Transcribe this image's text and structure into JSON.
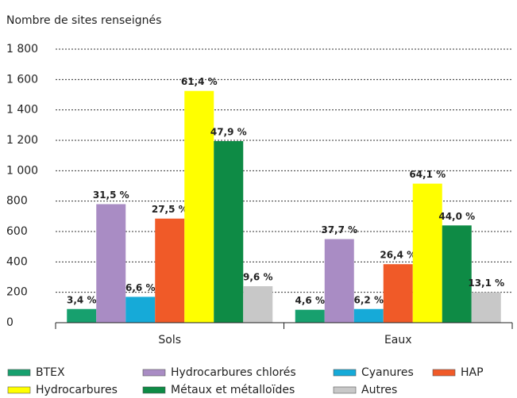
{
  "chart_data": {
    "type": "bar",
    "title": "Nombre de sites renseignés",
    "categories": [
      "Sols",
      "Eaux"
    ],
    "series": [
      {
        "name": "BTEX",
        "color": "#17a06e",
        "values": [
          90,
          85
        ],
        "value_labels": [
          "3,4 %",
          "4,6 %"
        ]
      },
      {
        "name": "Hydrocarbures chlorés",
        "color": "#a98cc4",
        "values": [
          780,
          550
        ],
        "value_labels": [
          "31,5 %",
          "37,7 %"
        ]
      },
      {
        "name": "Cyanures",
        "color": "#16aad8",
        "values": [
          170,
          90
        ],
        "value_labels": [
          "6,6 %",
          "6,2 %"
        ]
      },
      {
        "name": "HAP",
        "color": "#f05a28",
        "values": [
          685,
          385
        ],
        "value_labels": [
          "27,5 %",
          "26,4 %"
        ]
      },
      {
        "name": "Hydrocarbures",
        "color": "#ffff00",
        "values": [
          1525,
          915
        ],
        "value_labels": [
          "61,4 %",
          "64,1 %"
        ]
      },
      {
        "name": "Métaux et métalloïdes",
        "color": "#0e8b45",
        "values": [
          1195,
          640
        ],
        "value_labels": [
          "47,9 %",
          "44,0 %"
        ]
      },
      {
        "name": "Autres",
        "color": "#c8c8c8",
        "values": [
          240,
          200
        ],
        "value_labels": [
          "9,6 %",
          "13,1 %"
        ]
      }
    ],
    "ylim": [
      0,
      1800
    ],
    "yticks": [
      0,
      200,
      400,
      600,
      800,
      {
        "value": 1000,
        "label": "1 000"
      },
      {
        "value": 1200,
        "label": "1 200"
      },
      {
        "value": 1400,
        "label": "1 400"
      },
      {
        "value": 1600,
        "label": "1 600"
      },
      {
        "value": 1800,
        "label": "1 800"
      }
    ],
    "grid": true
  }
}
